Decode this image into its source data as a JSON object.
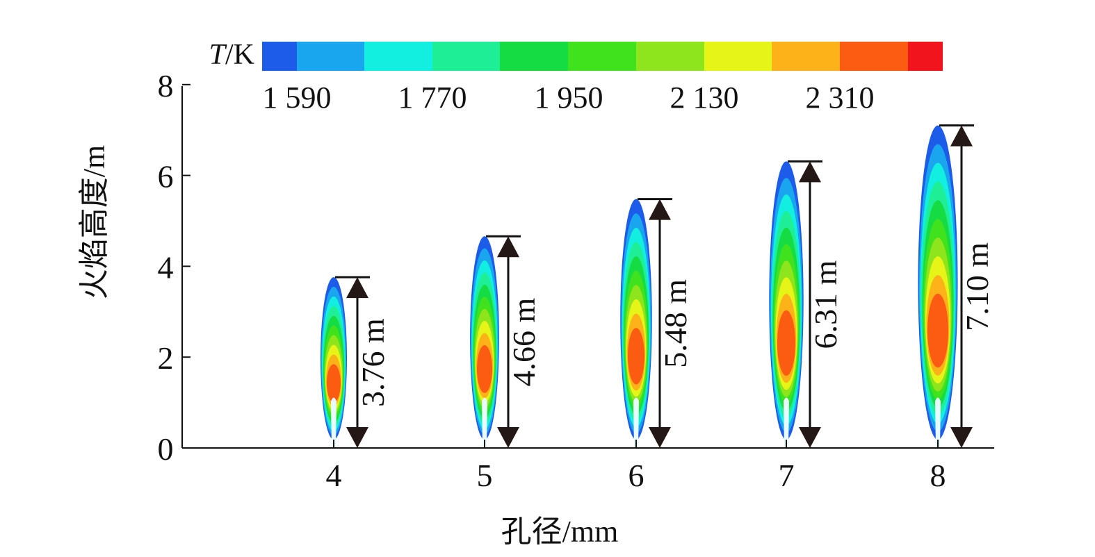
{
  "chart_data": {
    "type": "contour",
    "xlabel": "孔径/mm",
    "ylabel": "火焰高度/m",
    "categories": [
      "4",
      "5",
      "6",
      "7",
      "8"
    ],
    "x": [
      4,
      5,
      6,
      7,
      8
    ],
    "y_ticks": [
      "0",
      "2",
      "4",
      "6",
      "8"
    ],
    "ylim": [
      0,
      8
    ],
    "flame_heights": [
      3.76,
      4.66,
      5.48,
      6.31,
      7.1
    ],
    "height_labels": [
      "3.76 m",
      "4.66 m",
      "5.48 m",
      "6.31 m",
      "7.10 m"
    ],
    "colorbar": {
      "label_italic": "T",
      "label_rest": "/K",
      "tick_labels": [
        "1 590",
        "1 770",
        "1 950",
        "2 130",
        "2 310"
      ],
      "colors": [
        "#1d5ce8",
        "#1aa6ee",
        "#12eee0",
        "#1eef96",
        "#16dc43",
        "#40e21e",
        "#8ee51c",
        "#e6f417",
        "#fdb21a",
        "#fc5c12",
        "#f2141c"
      ]
    }
  }
}
